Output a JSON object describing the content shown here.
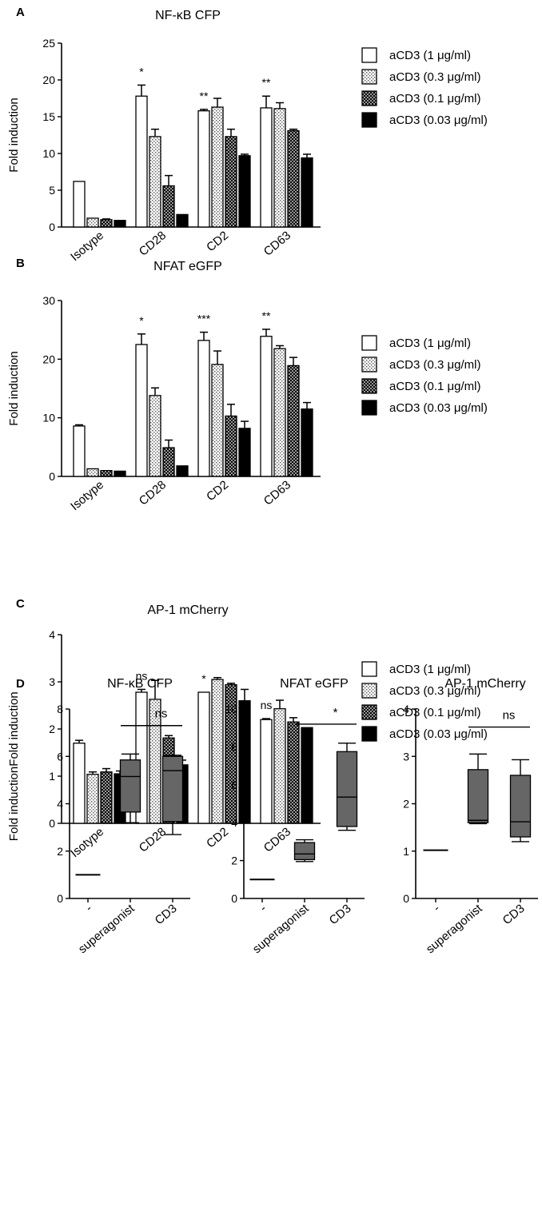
{
  "page": {
    "width": 678,
    "height": 1530
  },
  "styles": {
    "patterns": [
      "open",
      "dotted",
      "crosshatch",
      "solid"
    ],
    "box_fill": "#666666",
    "stroke": "#000000",
    "background": "#ffffff"
  },
  "chart_data": [
    {
      "id": "A",
      "type": "bar",
      "panel_label": "A",
      "title": "NF-κB CFP",
      "ylabel": "Fold induction",
      "xlabel": "",
      "ylim": [
        0,
        25
      ],
      "yticks": [
        0,
        5,
        10,
        15,
        20,
        25
      ],
      "grid": false,
      "legend_position": "right",
      "categories": [
        "Isotype",
        "CD28",
        "CD2",
        "CD63"
      ],
      "series": [
        {
          "name": "aCD3 (1 μg/ml)",
          "values": [
            6.2,
            17.8,
            15.8,
            16.2
          ],
          "errors": [
            0,
            1.5,
            0.2,
            1.6
          ]
        },
        {
          "name": "aCD3 (0.3 μg/ml)",
          "values": [
            1.2,
            12.3,
            16.3,
            16.1
          ],
          "errors": [
            0,
            1.0,
            1.2,
            0.8
          ]
        },
        {
          "name": "aCD3 (0.1 μg/ml)",
          "values": [
            1.0,
            5.6,
            12.3,
            13.1
          ],
          "errors": [
            0.1,
            1.4,
            1.0,
            0.2
          ]
        },
        {
          "name": "aCD3 (0.03 μg/ml)",
          "values": [
            0.9,
            1.7,
            9.7,
            9.4
          ],
          "errors": [
            0,
            0,
            0.2,
            0.5
          ]
        }
      ],
      "annotations": [
        {
          "category": "CD28",
          "text": "*"
        },
        {
          "category": "CD2",
          "text": "**"
        },
        {
          "category": "CD63",
          "text": "**"
        }
      ]
    },
    {
      "id": "B",
      "type": "bar",
      "panel_label": "B",
      "title": "NFAT eGFP",
      "ylabel": "Fold induction",
      "xlabel": "",
      "ylim": [
        0,
        30
      ],
      "yticks": [
        0,
        10,
        20,
        30
      ],
      "grid": false,
      "legend_position": "right",
      "categories": [
        "Isotype",
        "CD28",
        "CD2",
        "CD63"
      ],
      "series": [
        {
          "name": "aCD3 (1 μg/ml)",
          "values": [
            8.6,
            22.5,
            23.2,
            23.9
          ],
          "errors": [
            0.2,
            1.8,
            1.4,
            1.2
          ]
        },
        {
          "name": "aCD3 (0.3 μg/ml)",
          "values": [
            1.3,
            13.8,
            19.1,
            21.8
          ],
          "errors": [
            0,
            1.3,
            2.3,
            0.5
          ]
        },
        {
          "name": "aCD3 (0.1 μg/ml)",
          "values": [
            1.0,
            4.9,
            10.3,
            18.9
          ],
          "errors": [
            0,
            1.3,
            2.0,
            1.4
          ]
        },
        {
          "name": "aCD3 (0.03 μg/ml)",
          "values": [
            0.9,
            1.8,
            8.2,
            11.5
          ],
          "errors": [
            0,
            0,
            1.2,
            1.1
          ]
        }
      ],
      "annotations": [
        {
          "category": "CD28",
          "text": "*"
        },
        {
          "category": "CD2",
          "text": "***"
        },
        {
          "category": "CD63",
          "text": "**"
        }
      ]
    },
    {
      "id": "C",
      "type": "bar",
      "panel_label": "C",
      "title": "AP-1 mCherry",
      "ylabel": "Fold induction",
      "xlabel": "",
      "ylim": [
        0,
        4
      ],
      "yticks": [
        0,
        1,
        2,
        3,
        4
      ],
      "grid": false,
      "legend_position": "right",
      "categories": [
        "Isotype",
        "CD28",
        "CD2",
        "CD63"
      ],
      "series": [
        {
          "name": "aCD3 (1 μg/ml)",
          "values": [
            1.7,
            2.78,
            2.78,
            2.2
          ],
          "errors": [
            0.06,
            0.06,
            0,
            0.02
          ]
        },
        {
          "name": "aCD3 (0.3 μg/ml)",
          "values": [
            1.04,
            2.63,
            3.05,
            2.43
          ],
          "errors": [
            0.05,
            0.4,
            0.04,
            0.18
          ]
        },
        {
          "name": "aCD3 (0.1 μg/ml)",
          "values": [
            1.09,
            1.81,
            2.94,
            2.15
          ],
          "errors": [
            0.07,
            0.05,
            0.03,
            0.09
          ]
        },
        {
          "name": "aCD3 (0.03 μg/ml)",
          "values": [
            1.05,
            1.24,
            2.6,
            2.03
          ],
          "errors": [
            0.06,
            0.1,
            0.24,
            0
          ]
        }
      ],
      "annotations": [
        {
          "category": "CD28",
          "text": "ns"
        },
        {
          "category": "CD2",
          "text": "*"
        },
        {
          "category": "CD63",
          "text": "ns"
        }
      ]
    },
    {
      "id": "D1",
      "type": "box",
      "panel_label": "D",
      "title": "NF-κB CFP",
      "ylabel": "Fold induction",
      "xlabel": "",
      "ylim": [
        0,
        8
      ],
      "yticks": [
        0,
        2,
        4,
        6,
        8
      ],
      "grid": false,
      "categories": [
        "-",
        "superagonist",
        "CD3"
      ],
      "boxes": [
        {
          "category": "-",
          "min": 1.0,
          "q1": 1.0,
          "median": 1.0,
          "q3": 1.0,
          "max": 1.0
        },
        {
          "category": "superagonist",
          "min": 3.2,
          "q1": 3.65,
          "median": 5.15,
          "q3": 5.85,
          "max": 6.1
        },
        {
          "category": "CD3",
          "min": 2.7,
          "q1": 3.25,
          "median": 5.4,
          "q3": 6.0,
          "max": 6.05
        }
      ],
      "significance": {
        "from": "superagonist",
        "to": "CD3",
        "text": "ns",
        "y": 7.3
      }
    },
    {
      "id": "D2",
      "type": "box",
      "panel_label": "",
      "title": "NFAT eGFP",
      "ylabel": "",
      "xlabel": "",
      "ylim": [
        0,
        10
      ],
      "yticks": [
        0,
        2,
        4,
        6,
        8,
        10
      ],
      "grid": false,
      "categories": [
        "-",
        "superagonist",
        "CD3"
      ],
      "boxes": [
        {
          "category": "-",
          "min": 1.0,
          "q1": 1.0,
          "median": 1.0,
          "q3": 1.0,
          "max": 1.0
        },
        {
          "category": "superagonist",
          "min": 1.95,
          "q1": 2.05,
          "median": 2.35,
          "q3": 2.95,
          "max": 3.1
        },
        {
          "category": "CD3",
          "min": 3.6,
          "q1": 3.8,
          "median": 5.35,
          "q3": 7.75,
          "max": 8.2
        }
      ],
      "significance": {
        "from": "superagonist",
        "to": "CD3",
        "text": "*",
        "y": 9.2
      }
    },
    {
      "id": "D3",
      "type": "box",
      "panel_label": "",
      "title": "AP-1 mCherry",
      "ylabel": "",
      "xlabel": "",
      "ylim": [
        0,
        4
      ],
      "yticks": [
        0,
        1,
        2,
        3,
        4
      ],
      "grid": false,
      "categories": [
        "-",
        "superagonist",
        "CD3"
      ],
      "boxes": [
        {
          "category": "-",
          "min": 1.0,
          "q1": 1.0,
          "median": 1.02,
          "q3": 1.04,
          "max": 1.04
        },
        {
          "category": "superagonist",
          "min": 1.58,
          "q1": 1.6,
          "median": 1.65,
          "q3": 2.72,
          "max": 3.05
        },
        {
          "category": "CD3",
          "min": 1.2,
          "q1": 1.3,
          "median": 1.62,
          "q3": 2.6,
          "max": 2.93
        }
      ],
      "significance": {
        "from": "superagonist",
        "to": "CD3",
        "text": "ns",
        "y": 3.62
      }
    }
  ]
}
